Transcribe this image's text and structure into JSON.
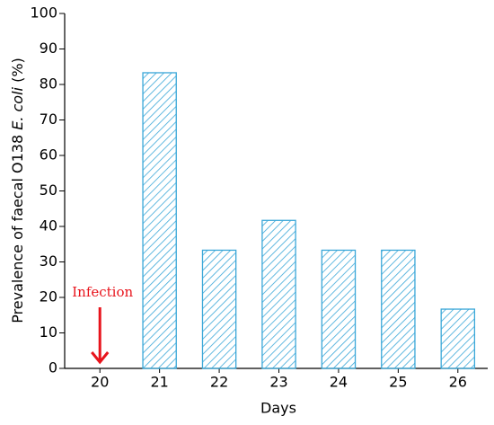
{
  "chart_data": {
    "type": "bar",
    "y_label": [
      "Prevalence of faecal O138 ",
      "E. coli",
      " (%)"
    ],
    "x_label": "Days",
    "categories": [
      "20",
      "21",
      "22",
      "23",
      "24",
      "25",
      "26"
    ],
    "values": [
      0,
      83.3,
      33.3,
      41.7,
      33.3,
      33.3,
      16.7
    ],
    "color": "#3aa7d8",
    "ylim": [
      0,
      100
    ],
    "yticks": [
      0,
      10,
      20,
      30,
      40,
      50,
      60,
      70,
      80,
      90,
      100
    ],
    "annotation": {
      "text": "Infection",
      "color": "#e8141c",
      "category_index": 0
    }
  }
}
